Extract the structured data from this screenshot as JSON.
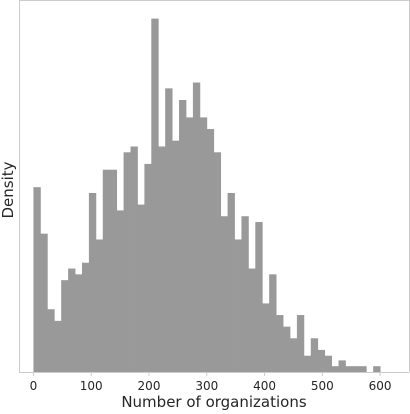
{
  "chart_data": {
    "type": "bar",
    "title": "",
    "xlabel": "Number of organizations",
    "ylabel": "Density",
    "xlim": [
      -25,
      650
    ],
    "ylim": [
      0,
      0.0064
    ],
    "grid": false,
    "legend": "none",
    "bar_color": "#999999",
    "xticks": [
      0,
      100,
      200,
      300,
      400,
      500,
      600
    ],
    "bin_width": 12,
    "bin_starts": [
      0,
      12,
      24,
      36,
      48,
      60,
      72,
      84,
      96,
      108,
      120,
      132,
      144,
      156,
      168,
      180,
      192,
      204,
      216,
      228,
      240,
      252,
      264,
      276,
      288,
      300,
      312,
      324,
      336,
      348,
      360,
      372,
      384,
      396,
      408,
      420,
      432,
      444,
      456,
      468,
      480,
      492,
      504,
      516,
      528,
      540,
      552,
      564,
      576,
      588,
      600
    ],
    "values": [
      0.00318,
      0.00238,
      0.00108,
      0.00088,
      0.00158,
      0.00178,
      0.00168,
      0.00188,
      0.00308,
      0.00228,
      0.00348,
      0.00348,
      0.00278,
      0.00378,
      0.00388,
      0.00288,
      0.00358,
      0.00608,
      0.00388,
      0.00488,
      0.00398,
      0.00468,
      0.00438,
      0.00498,
      0.00438,
      0.00418,
      0.00378,
      0.00268,
      0.00308,
      0.00228,
      0.00268,
      0.00178,
      0.00258,
      0.00118,
      0.00168,
      0.00098,
      0.00078,
      0.00058,
      0.00098,
      0.00028,
      0.00058,
      0.00038,
      0.00028,
      0.0001,
      0.0002,
      0.0001,
      0.0001,
      0.0001,
      0,
      0.0001,
      0
    ]
  }
}
